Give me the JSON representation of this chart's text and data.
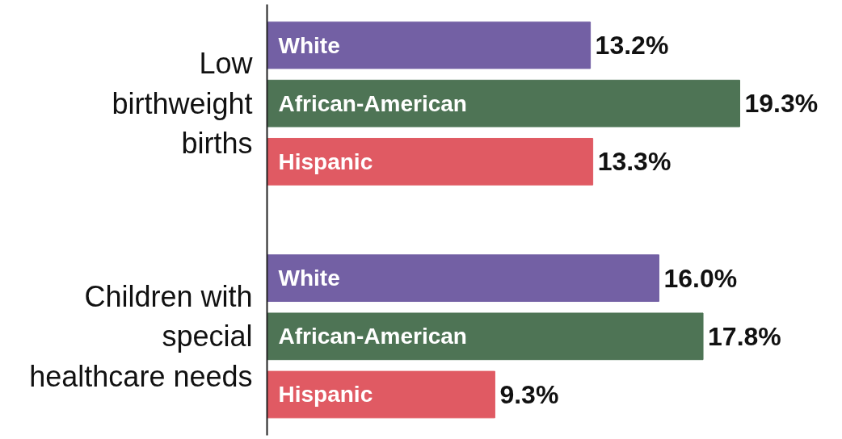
{
  "chart_data": {
    "type": "bar",
    "orientation": "horizontal",
    "categories": [
      "Low\nbirthweight\nbirths",
      "Children with\nspecial\nhealthcare needs"
    ],
    "series": [
      {
        "name": "White",
        "color": "#7360a4",
        "values": [
          13.2,
          16.0
        ],
        "value_labels": [
          "13.2%",
          "16.0%"
        ]
      },
      {
        "name": "African-American",
        "color": "#4e7455",
        "values": [
          19.3,
          17.8
        ],
        "value_labels": [
          "19.3%",
          "17.8%"
        ]
      },
      {
        "name": "Hispanic",
        "color": "#e05a63",
        "values": [
          13.3,
          9.3
        ],
        "value_labels": [
          "13.3%",
          "9.3%"
        ]
      }
    ],
    "tick_labels": "y",
    "grid": false
  }
}
